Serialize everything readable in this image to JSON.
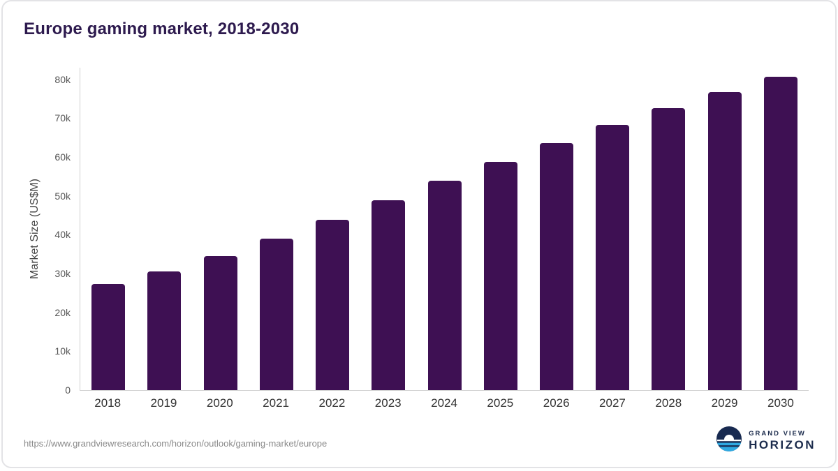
{
  "page": {
    "title": "Europe gaming market, 2018-2030",
    "source_url": "https://www.grandviewresearch.com/horizon/outlook/gaming-market/europe"
  },
  "logo": {
    "line1": "GRAND VIEW",
    "line2": "HORIZON",
    "navy": "#182a50",
    "light_blue": "#2fa9e1"
  },
  "chart_data": {
    "type": "bar",
    "title": "Europe gaming market, 2018-2030",
    "xlabel": "",
    "ylabel": "Market Size (US$M)",
    "categories": [
      "2018",
      "2019",
      "2020",
      "2021",
      "2022",
      "2023",
      "2024",
      "2025",
      "2026",
      "2027",
      "2028",
      "2029",
      "2030"
    ],
    "values": [
      27300,
      30500,
      34500,
      38900,
      43800,
      48900,
      53900,
      58700,
      63600,
      68300,
      72600,
      76700,
      80600
    ],
    "ylim": [
      0,
      83000
    ],
    "yticks": [
      0,
      10000,
      20000,
      30000,
      40000,
      50000,
      60000,
      70000,
      80000
    ],
    "ytick_labels": [
      "0",
      "10k",
      "20k",
      "30k",
      "40k",
      "50k",
      "60k",
      "70k",
      "80k"
    ],
    "bar_color": "#3e1053",
    "grid": false,
    "legend": "none"
  }
}
